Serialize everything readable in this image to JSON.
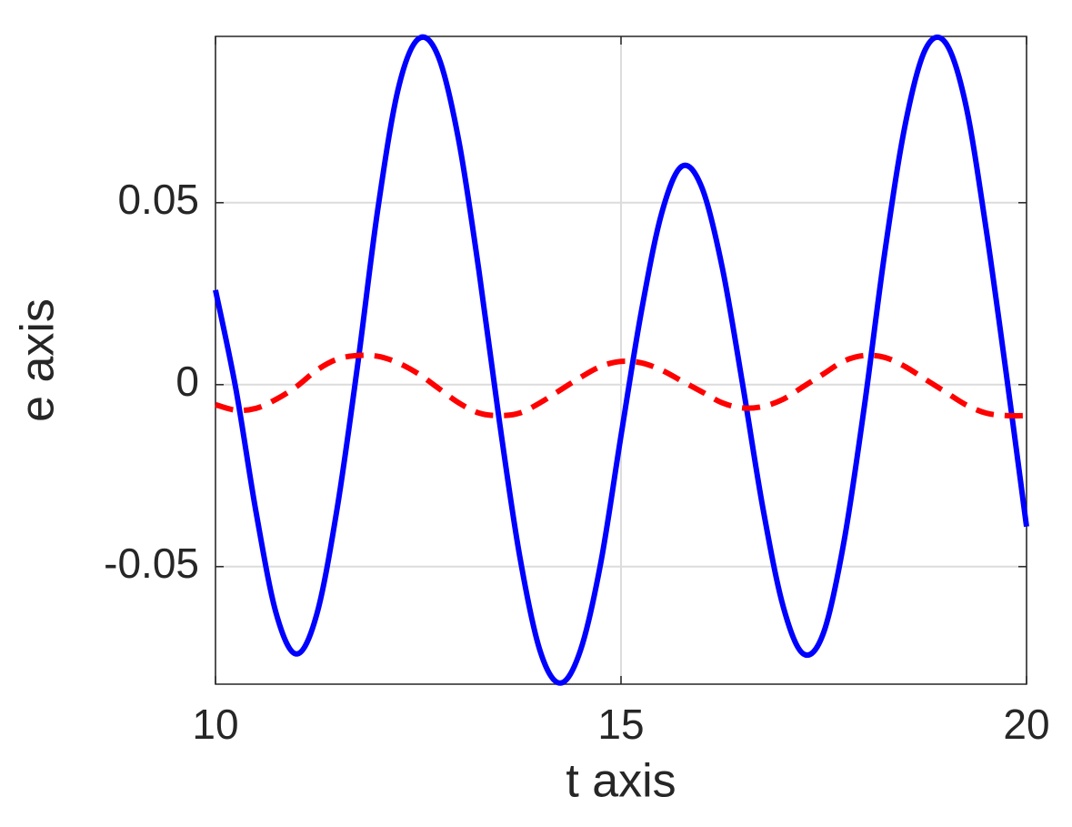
{
  "chart_data": {
    "type": "line",
    "xlabel": "t axis",
    "ylabel": "e axis",
    "x": [
      10,
      10.25,
      10.5,
      10.75,
      11,
      11.25,
      11.5,
      11.75,
      12,
      12.25,
      12.5,
      12.75,
      13,
      13.25,
      13.5,
      13.75,
      14,
      14.25,
      14.5,
      14.75,
      15,
      15.25,
      15.5,
      15.75,
      16,
      16.25,
      16.5,
      16.75,
      17,
      17.25,
      17.5,
      17.75,
      18,
      18.25,
      18.5,
      18.75,
      19,
      19.25,
      19.5,
      19.75,
      20
    ],
    "series": [
      {
        "color": "#0000ff",
        "dash": false,
        "values": [
          0.026,
          -0.001,
          -0.035,
          -0.063,
          -0.074,
          -0.063,
          -0.034,
          0.005,
          0.048,
          0.081,
          0.095,
          0.09,
          0.067,
          0.031,
          -0.01,
          -0.047,
          -0.073,
          -0.082,
          -0.073,
          -0.049,
          -0.014,
          0.02,
          0.047,
          0.06,
          0.054,
          0.032,
          0,
          -0.034,
          -0.061,
          -0.074,
          -0.068,
          -0.043,
          -0.006,
          0.036,
          0.071,
          0.092,
          0.094,
          0.077,
          0.043,
          0.003,
          -0.039
        ]
      },
      {
        "color": "#ff0000",
        "dash": true,
        "values": [
          -0.0055,
          -0.007,
          -0.0065,
          -0.004,
          -0.0005,
          0.004,
          0.007,
          0.008,
          0.0078,
          0.006,
          0.003,
          -0.001,
          -0.005,
          -0.0078,
          -0.0085,
          -0.0078,
          -0.005,
          -0.0015,
          0.002,
          0.005,
          0.0064,
          0.006,
          0.004,
          0.001,
          -0.002,
          -0.005,
          -0.0064,
          -0.006,
          -0.004,
          -0.0005,
          0.003,
          0.0065,
          0.008,
          0.0075,
          0.005,
          0.0015,
          -0.002,
          -0.0055,
          -0.0078,
          -0.0085,
          -0.0085
        ]
      }
    ],
    "xlim": [
      10,
      20
    ],
    "ylim": [
      -0.0823,
      0.0957
    ],
    "xticks": [
      10,
      15,
      20
    ],
    "yticks": [
      -0.05,
      0,
      0.05
    ],
    "grid": true
  }
}
